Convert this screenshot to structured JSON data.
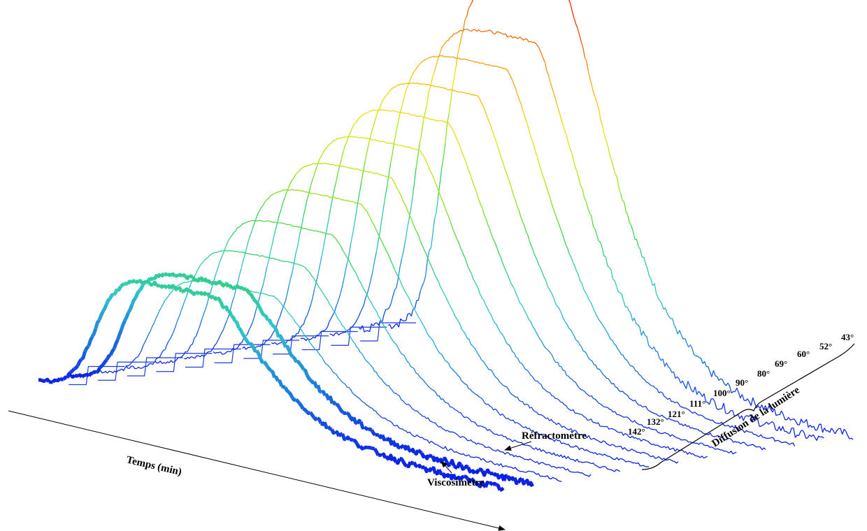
{
  "chart_data": {
    "type": "line",
    "subtype": "3d-waterfall",
    "xlabel": "Temps (min)",
    "depth_label": "Diffusion de la lumière",
    "grid": false,
    "legend": "none",
    "colormap": [
      "#0a1fe6",
      "#1c7fe0",
      "#2fc8c8",
      "#34d25a",
      "#a8e60c",
      "#f0e20a",
      "#f5a00a",
      "#f0280a"
    ],
    "light_scattering_angles": [
      "43°",
      "52°",
      "60°",
      "69°",
      "80°",
      "90°",
      "100°",
      "111°",
      "121°",
      "132°",
      "142°"
    ],
    "instruments": [
      {
        "name": "Réfractomètre"
      },
      {
        "name": "Viscosimètre"
      }
    ],
    "series_peak_relative_intensity": [
      {
        "name": "43°",
        "value": 1.0
      },
      {
        "name": "52°",
        "value": 0.88
      },
      {
        "name": "60°",
        "value": 0.82
      },
      {
        "name": "69°",
        "value": 0.76
      },
      {
        "name": "80°",
        "value": 0.7
      },
      {
        "name": "90°",
        "value": 0.64
      },
      {
        "name": "100°",
        "value": 0.58
      },
      {
        "name": "111°",
        "value": 0.52
      },
      {
        "name": "121°",
        "value": 0.45
      },
      {
        "name": "132°",
        "value": 0.38
      },
      {
        "name": "142°",
        "value": 0.31
      },
      {
        "name": "Réfractomètre",
        "value": 0.34
      },
      {
        "name": "Viscosimètre",
        "value": 0.33
      }
    ]
  }
}
